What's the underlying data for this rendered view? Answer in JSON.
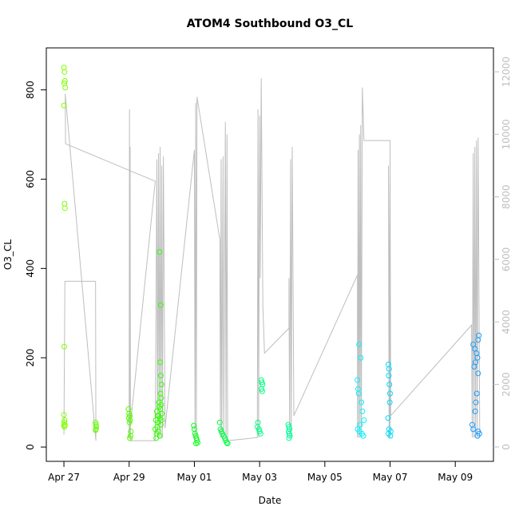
{
  "chart_data": {
    "type": "scatter",
    "title": "ATOM4 Southbound O3_CL",
    "x_label": "Date",
    "y_label": "O3_CL",
    "xlim": [
      -0.54,
      13.17
    ],
    "ylim": [
      -32,
      894
    ],
    "y2lim": [
      -460,
      12766
    ],
    "xticks": [
      {
        "value": 0,
        "label": "Apr 27"
      },
      {
        "value": 2,
        "label": "Apr 29"
      },
      {
        "value": 4,
        "label": "May 01"
      },
      {
        "value": 6,
        "label": "May 03"
      },
      {
        "value": 8,
        "label": "May 05"
      },
      {
        "value": 10,
        "label": "May 07"
      },
      {
        "value": 12,
        "label": "May 09"
      }
    ],
    "yticks": [
      0,
      200,
      400,
      600,
      800
    ],
    "y2ticks": [
      0,
      2000,
      4000,
      6000,
      8000,
      10000,
      12000
    ],
    "series": [
      {
        "type": "line",
        "axis": "y2",
        "color": "#bebebe",
        "x": [
          0.0,
          0.03,
          0.97,
          0.98,
          0.04,
          0.05,
          2.8,
          2.0,
          2.01,
          2.02,
          2.03,
          2.04,
          2.8,
          2.85,
          2.87,
          2.9,
          2.92,
          2.95,
          2.97,
          3.0,
          3.02,
          3.05,
          3.1,
          4.0,
          4.02,
          4.04,
          4.06,
          4.08,
          4.78,
          4.8,
          4.82,
          4.84,
          4.88,
          4.9,
          4.95,
          4.97,
          5.0,
          5.02,
          5.93,
          5.95,
          5.97,
          6.0,
          6.02,
          6.05,
          6.1,
          6.15,
          6.9,
          6.9,
          6.92,
          6.95,
          6.97,
          7.0,
          7.05,
          9.0,
          9.0,
          9.02,
          9.04,
          9.06,
          9.08,
          9.1,
          9.12,
          9.15,
          9.2,
          10.0,
          10.0,
          9.95,
          9.97,
          10.0,
          10.02,
          12.5,
          12.52,
          12.55,
          12.57,
          12.6,
          12.62,
          12.65,
          12.67,
          12.7,
          12.75
        ],
        "values": [
          400,
          5300,
          5300,
          200,
          11300,
          9700,
          8500,
          300,
          10800,
          300,
          9600,
          200,
          200,
          9200,
          300,
          9400,
          300,
          9600,
          300,
          9000,
          300,
          9300,
          600,
          9500,
          200,
          11000,
          300,
          11200,
          6640,
          300,
          9200,
          300,
          9300,
          300,
          10400,
          300,
          10000,
          200,
          300,
          10800,
          300,
          10600,
          5400,
          11800,
          4500,
          3000,
          3800,
          5400,
          300,
          9200,
          300,
          9600,
          1000,
          5500,
          300,
          9500,
          300,
          10000,
          300,
          10300,
          300,
          11500,
          9800,
          9800,
          300,
          9000,
          300,
          9300,
          1000,
          3900,
          300,
          9400,
          300,
          9600,
          300,
          9800,
          300,
          9900,
          300
        ]
      },
      {
        "color": "#80ff00",
        "x": [
          0.0,
          0.02,
          0.03,
          0.01,
          0.04,
          0.0,
          0.02,
          0.03,
          0.01,
          0.0,
          0.02,
          0.01,
          0.03,
          0.0,
          0.02
        ],
        "values": [
          850,
          840,
          820,
          815,
          805,
          765,
          545,
          535,
          225,
          72,
          60,
          55,
          50,
          48,
          45
        ]
      },
      {
        "color": "#66ff00",
        "x": [
          0.97,
          0.98,
          0.99,
          0.98,
          0.97
        ],
        "values": [
          55,
          50,
          45,
          40,
          38
        ]
      },
      {
        "color": "#55ff00",
        "x": [
          1.98,
          2.0,
          2.02,
          1.99,
          2.03,
          2.01,
          2.05,
          2.04,
          2.02
        ],
        "values": [
          85,
          75,
          70,
          65,
          60,
          55,
          35,
          25,
          20
        ]
      },
      {
        "color": "#33ff00",
        "x": [
          2.8,
          2.82,
          2.85,
          2.88,
          2.9,
          2.92,
          2.95,
          2.97,
          3.0,
          2.84,
          2.86,
          2.91,
          2.96,
          2.99,
          2.83,
          2.89,
          2.94,
          2.98,
          2.87,
          2.93,
          2.97,
          2.95,
          2.97,
          2.99,
          2.96,
          2.98
        ],
        "values": [
          40,
          60,
          80,
          55,
          70,
          90,
          65,
          50,
          75,
          30,
          45,
          100,
          85,
          60,
          20,
          35,
          25,
          95,
          70,
          437,
          318,
          190,
          160,
          140,
          120,
          110
        ]
      },
      {
        "color": "#10ff20",
        "x": [
          3.98,
          4.0,
          4.02,
          4.04,
          4.06,
          4.08,
          4.1,
          4.05
        ],
        "values": [
          48,
          40,
          30,
          25,
          20,
          15,
          10,
          8
        ]
      },
      {
        "color": "#00ff44",
        "x": [
          4.78,
          4.8,
          4.83,
          4.86,
          4.9,
          4.93,
          4.96,
          4.99,
          5.02
        ],
        "values": [
          55,
          40,
          35,
          30,
          25,
          20,
          15,
          10,
          8
        ]
      },
      {
        "color": "#00ff80",
        "x": [
          6.05,
          6.07,
          6.09,
          6.06,
          6.08,
          5.95,
          5.93,
          5.98,
          6.0,
          6.03
        ],
        "values": [
          150,
          145,
          140,
          130,
          125,
          55,
          45,
          40,
          35,
          30
        ]
      },
      {
        "color": "#00ff99",
        "x": [
          6.88,
          6.9,
          6.92,
          6.89,
          6.91,
          6.93,
          6.9
        ],
        "values": [
          50,
          45,
          40,
          35,
          30,
          25,
          20
        ]
      },
      {
        "color": "#00f5ff",
        "x": [
          9.05,
          9.1,
          9.0,
          9.02,
          9.04,
          9.12,
          9.15,
          9.2,
          9.08,
          9.01,
          9.06,
          9.14,
          9.18
        ],
        "values": [
          230,
          200,
          150,
          130,
          120,
          100,
          80,
          60,
          50,
          40,
          35,
          30,
          25
        ]
      },
      {
        "color": "#00ddff",
        "x": [
          9.95,
          9.97,
          9.96,
          9.98,
          10.0,
          9.99,
          9.94,
          9.97,
          10.02,
          9.95,
          10.01
        ],
        "values": [
          185,
          175,
          160,
          140,
          120,
          100,
          65,
          40,
          35,
          30,
          25
        ]
      },
      {
        "color": "#1a9fff",
        "x": [
          12.72,
          12.7,
          12.55,
          12.6,
          12.65,
          12.68,
          12.62,
          12.58,
          12.7,
          12.66,
          12.63,
          12.61,
          12.52,
          12.55,
          12.7,
          12.74,
          12.68
        ],
        "values": [
          250,
          240,
          230,
          220,
          210,
          200,
          190,
          180,
          165,
          120,
          100,
          80,
          50,
          40,
          35,
          30,
          25
        ]
      }
    ]
  }
}
